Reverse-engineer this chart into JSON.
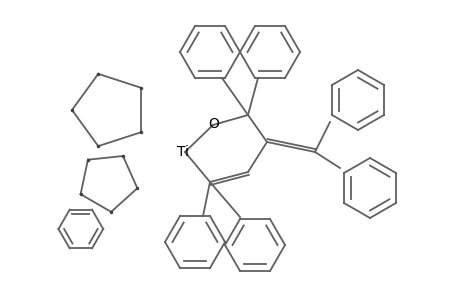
{
  "background_color": "#ffffff",
  "line_color": "#606060",
  "text_color": "#000000",
  "Ti_label": "Ti",
  "O_label": "O",
  "figsize": [
    4.6,
    3.0
  ],
  "dpi": 100
}
